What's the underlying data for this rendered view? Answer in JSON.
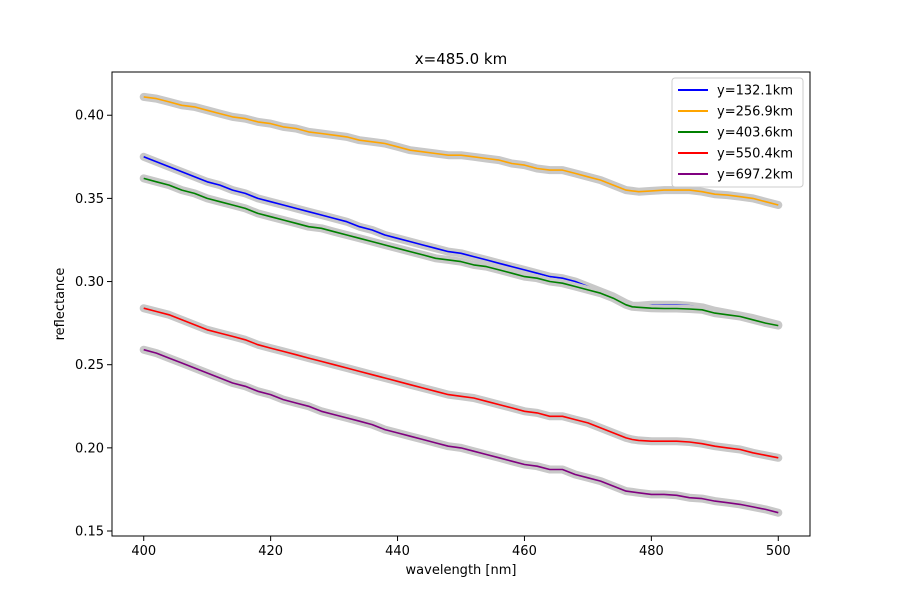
{
  "chart_data": {
    "type": "line",
    "title": "x=485.0 km",
    "xlabel": "wavelength [nm]",
    "ylabel": "reflectance",
    "xlim": [
      395,
      505
    ],
    "ylim": [
      0.147,
      0.426
    ],
    "xticks": [
      400,
      420,
      440,
      460,
      480,
      500
    ],
    "xtick_labels": [
      "400",
      "420",
      "440",
      "460",
      "480",
      "500"
    ],
    "yticks": [
      0.15,
      0.2,
      0.25,
      0.3,
      0.35,
      0.4
    ],
    "ytick_labels": [
      "0.15",
      "0.20",
      "0.25",
      "0.30",
      "0.35",
      "0.40"
    ],
    "grid": false,
    "legend_position": "top-right",
    "uncertainty_band_color": "#c8c8c8",
    "x": [
      400,
      402,
      404,
      406,
      408,
      410,
      412,
      414,
      416,
      418,
      420,
      422,
      424,
      426,
      428,
      430,
      432,
      434,
      436,
      438,
      440,
      442,
      444,
      446,
      448,
      450,
      452,
      454,
      456,
      458,
      460,
      462,
      464,
      466,
      468,
      470,
      472,
      474,
      476,
      477,
      478,
      480,
      482,
      484,
      486,
      488,
      490,
      492,
      494,
      496,
      498,
      500
    ],
    "series": [
      {
        "name": "y=132.1km",
        "color": "#0000ff",
        "values": [
          0.375,
          0.372,
          0.369,
          0.366,
          0.363,
          0.36,
          0.358,
          0.355,
          0.353,
          0.35,
          0.348,
          0.346,
          0.344,
          0.342,
          0.34,
          0.338,
          0.336,
          0.333,
          0.331,
          0.328,
          0.326,
          0.324,
          0.322,
          0.32,
          0.318,
          0.317,
          0.315,
          0.313,
          0.311,
          0.309,
          0.307,
          0.305,
          0.303,
          0.302,
          0.3,
          0.297,
          0.294,
          0.291,
          0.287,
          0.2855,
          0.2855,
          0.286,
          0.286,
          0.286,
          0.2855,
          0.2845,
          0.2825,
          0.281,
          0.2795,
          0.278,
          0.276,
          0.274
        ]
      },
      {
        "name": "y=256.9km",
        "color": "#ffa500",
        "values": [
          0.411,
          0.41,
          0.408,
          0.406,
          0.405,
          0.403,
          0.401,
          0.399,
          0.398,
          0.396,
          0.395,
          0.393,
          0.392,
          0.39,
          0.389,
          0.388,
          0.387,
          0.385,
          0.384,
          0.383,
          0.381,
          0.379,
          0.378,
          0.377,
          0.376,
          0.376,
          0.375,
          0.374,
          0.373,
          0.371,
          0.37,
          0.368,
          0.367,
          0.367,
          0.365,
          0.363,
          0.361,
          0.358,
          0.355,
          0.3545,
          0.354,
          0.3545,
          0.355,
          0.355,
          0.355,
          0.354,
          0.3525,
          0.352,
          0.351,
          0.35,
          0.348,
          0.346
        ]
      },
      {
        "name": "y=403.6km",
        "color": "#008000",
        "values": [
          0.362,
          0.36,
          0.358,
          0.355,
          0.353,
          0.35,
          0.348,
          0.346,
          0.344,
          0.341,
          0.339,
          0.337,
          0.335,
          0.333,
          0.332,
          0.33,
          0.328,
          0.326,
          0.324,
          0.322,
          0.32,
          0.318,
          0.316,
          0.314,
          0.313,
          0.312,
          0.31,
          0.309,
          0.307,
          0.305,
          0.303,
          0.302,
          0.3,
          0.299,
          0.297,
          0.295,
          0.293,
          0.29,
          0.286,
          0.2848,
          0.2845,
          0.284,
          0.2838,
          0.2838,
          0.2835,
          0.283,
          0.281,
          0.28,
          0.279,
          0.277,
          0.275,
          0.2735
        ]
      },
      {
        "name": "y=550.4km",
        "color": "#ff0000",
        "values": [
          0.284,
          0.282,
          0.28,
          0.277,
          0.274,
          0.271,
          0.269,
          0.267,
          0.265,
          0.262,
          0.26,
          0.258,
          0.256,
          0.254,
          0.252,
          0.25,
          0.248,
          0.246,
          0.244,
          0.242,
          0.24,
          0.238,
          0.236,
          0.234,
          0.232,
          0.231,
          0.23,
          0.228,
          0.226,
          0.224,
          0.222,
          0.221,
          0.219,
          0.219,
          0.217,
          0.215,
          0.212,
          0.209,
          0.206,
          0.205,
          0.2045,
          0.204,
          0.204,
          0.204,
          0.2035,
          0.2025,
          0.201,
          0.2,
          0.199,
          0.197,
          0.1955,
          0.194
        ]
      },
      {
        "name": "y=697.2km",
        "color": "#800080",
        "values": [
          0.259,
          0.257,
          0.254,
          0.251,
          0.248,
          0.245,
          0.242,
          0.239,
          0.237,
          0.234,
          0.232,
          0.229,
          0.227,
          0.225,
          0.222,
          0.22,
          0.218,
          0.216,
          0.214,
          0.211,
          0.209,
          0.207,
          0.205,
          0.203,
          0.201,
          0.2,
          0.198,
          0.196,
          0.194,
          0.192,
          0.19,
          0.189,
          0.187,
          0.187,
          0.184,
          0.182,
          0.18,
          0.177,
          0.174,
          0.1735,
          0.173,
          0.172,
          0.172,
          0.1715,
          0.17,
          0.1695,
          0.168,
          0.167,
          0.166,
          0.1645,
          0.163,
          0.161
        ]
      }
    ]
  }
}
